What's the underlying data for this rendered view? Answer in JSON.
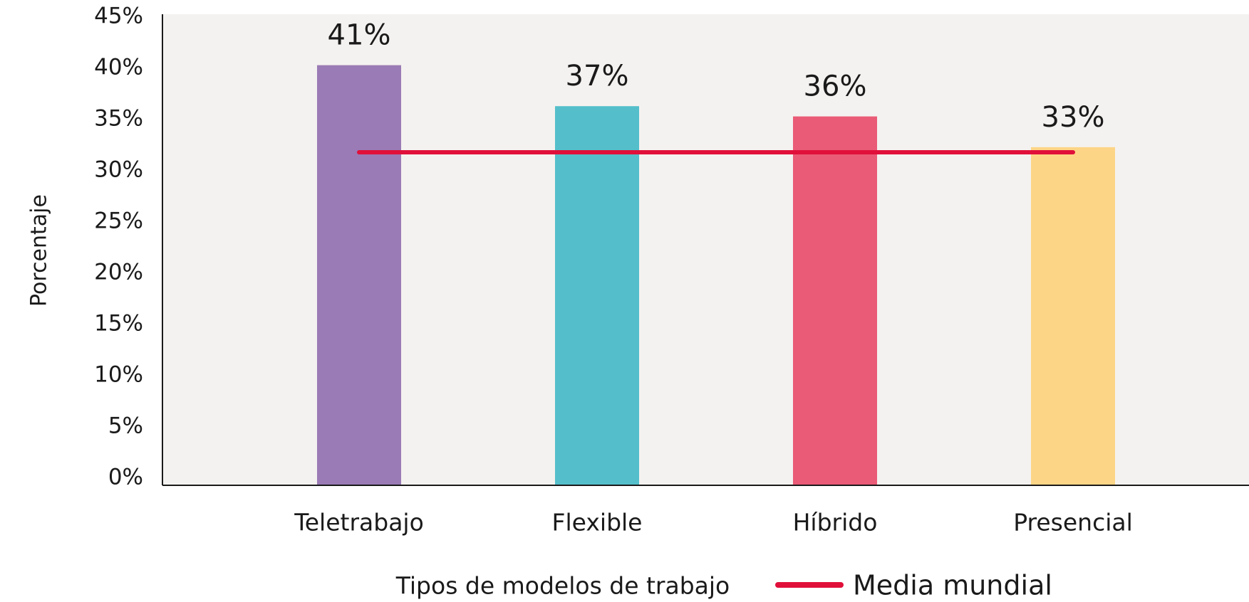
{
  "chart_data": {
    "type": "bar",
    "xlabel": "Tipos de modelos de trabajo",
    "ylabel": "Porcentaje",
    "categories": [
      "Teletrabajo",
      "Flexible",
      "Híbrido",
      "Presencial"
    ],
    "values": [
      41,
      37,
      36,
      33
    ],
    "value_labels": [
      "41%",
      "37%",
      "36%",
      "33%"
    ],
    "colors": [
      "#9a7bb5",
      "#54bfcb",
      "#ea5b77",
      "#fdd587"
    ],
    "ylim": [
      0,
      45
    ],
    "yticks": [
      {
        "value": 0,
        "label": "0%"
      },
      {
        "value": 5,
        "label": "5%"
      },
      {
        "value": 10,
        "label": "10%"
      },
      {
        "value": 15,
        "label": "15%"
      },
      {
        "value": 20,
        "label": "20%"
      },
      {
        "value": 25,
        "label": "25%"
      },
      {
        "value": 30,
        "label": "30%"
      },
      {
        "value": 35,
        "label": "35%"
      },
      {
        "value": 40,
        "label": "40%"
      },
      {
        "value": 45,
        "label": "45%"
      }
    ],
    "reference_line": {
      "name": "Media mundial",
      "value": 32.5,
      "color": "#e0103a"
    }
  }
}
